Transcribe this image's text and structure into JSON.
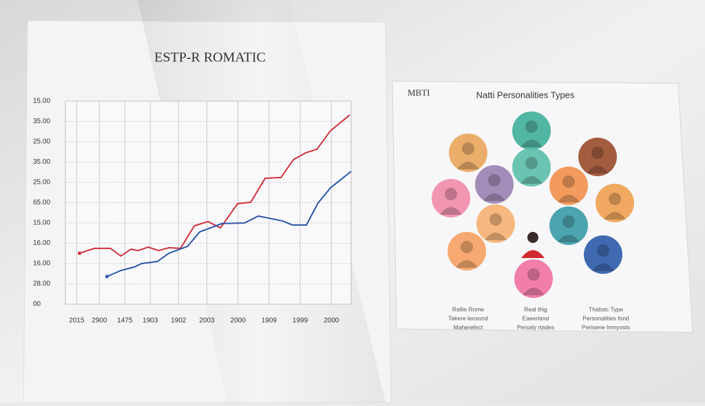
{
  "chart_data": {
    "type": "line",
    "title": "ESTP-R ROMATIC",
    "series": [
      {
        "color": "#d0303a",
        "x": [
          0.9,
          1.43,
          1.99,
          2.36,
          2.72,
          2.97,
          3.33,
          3.69,
          4.06,
          4.47,
          4.96,
          5.44,
          5.88,
          6.49,
          6.95,
          7.46,
          8.02,
          8.46,
          8.9,
          9.29,
          9.77,
          10.45
        ],
        "values": [
          2.51,
          2.75,
          2.75,
          2.37,
          2.71,
          2.64,
          2.81,
          2.64,
          2.78,
          2.75,
          3.86,
          4.07,
          3.76,
          4.95,
          5.02,
          6.2,
          6.24,
          7.12,
          7.46,
          7.63,
          8.54,
          9.32
        ]
      },
      {
        "color": "#2a55a8",
        "x": [
          1.87,
          2.36,
          2.84,
          3.09,
          3.65,
          4.06,
          4.72,
          5.15,
          5.93,
          6.73,
          7.22,
          8.07,
          8.43,
          8.92,
          9.33,
          9.77,
          10.5
        ],
        "values": [
          1.36,
          1.66,
          1.83,
          2.0,
          2.1,
          2.51,
          2.85,
          3.56,
          3.97,
          4.0,
          4.34,
          4.1,
          3.9,
          3.9,
          4.98,
          5.73,
          6.54
        ]
      }
    ],
    "xlim": [
      0.4,
      10.5
    ],
    "xticks": [
      {
        "value": 0.8,
        "label": "2015"
      },
      {
        "value": 1.6,
        "label": "2900"
      },
      {
        "value": 2.5,
        "label": "1475"
      },
      {
        "value": 3.4,
        "label": "1903"
      },
      {
        "value": 4.4,
        "label": "1902"
      },
      {
        "value": 5.4,
        "label": "2003"
      },
      {
        "value": 6.5,
        "label": "2000"
      },
      {
        "value": 7.6,
        "label": "1909"
      },
      {
        "value": 8.7,
        "label": "1999"
      },
      {
        "value": 9.8,
        "label": "2000"
      }
    ],
    "ylim": [
      0,
      10
    ],
    "yticks": [
      {
        "value": 0,
        "label": "00"
      },
      {
        "value": 1,
        "label": "28.00"
      },
      {
        "value": 2,
        "label": "16.00"
      },
      {
        "value": 3,
        "label": "16.00"
      },
      {
        "value": 4,
        "label": "15.00"
      },
      {
        "value": 5,
        "label": "65.00"
      },
      {
        "value": 6,
        "label": "25.00"
      },
      {
        "value": 7,
        "label": "35.00"
      },
      {
        "value": 8,
        "label": "25.00"
      },
      {
        "value": 9,
        "label": "35.00"
      },
      {
        "value": 10,
        "label": "15.00"
      }
    ],
    "grid": true
  },
  "panel": {
    "label": "MBTI",
    "title": "Natti Personalities Types",
    "captions": [
      [
        "Rallie Rome",
        "Takere leosond",
        "Maherefect"
      ],
      [
        "Real thig",
        "Eaeerland",
        "Persaly rtades"
      ],
      [
        "Thalistc Type",
        "Personalities fond",
        "Perisene Inmyosts"
      ]
    ]
  }
}
